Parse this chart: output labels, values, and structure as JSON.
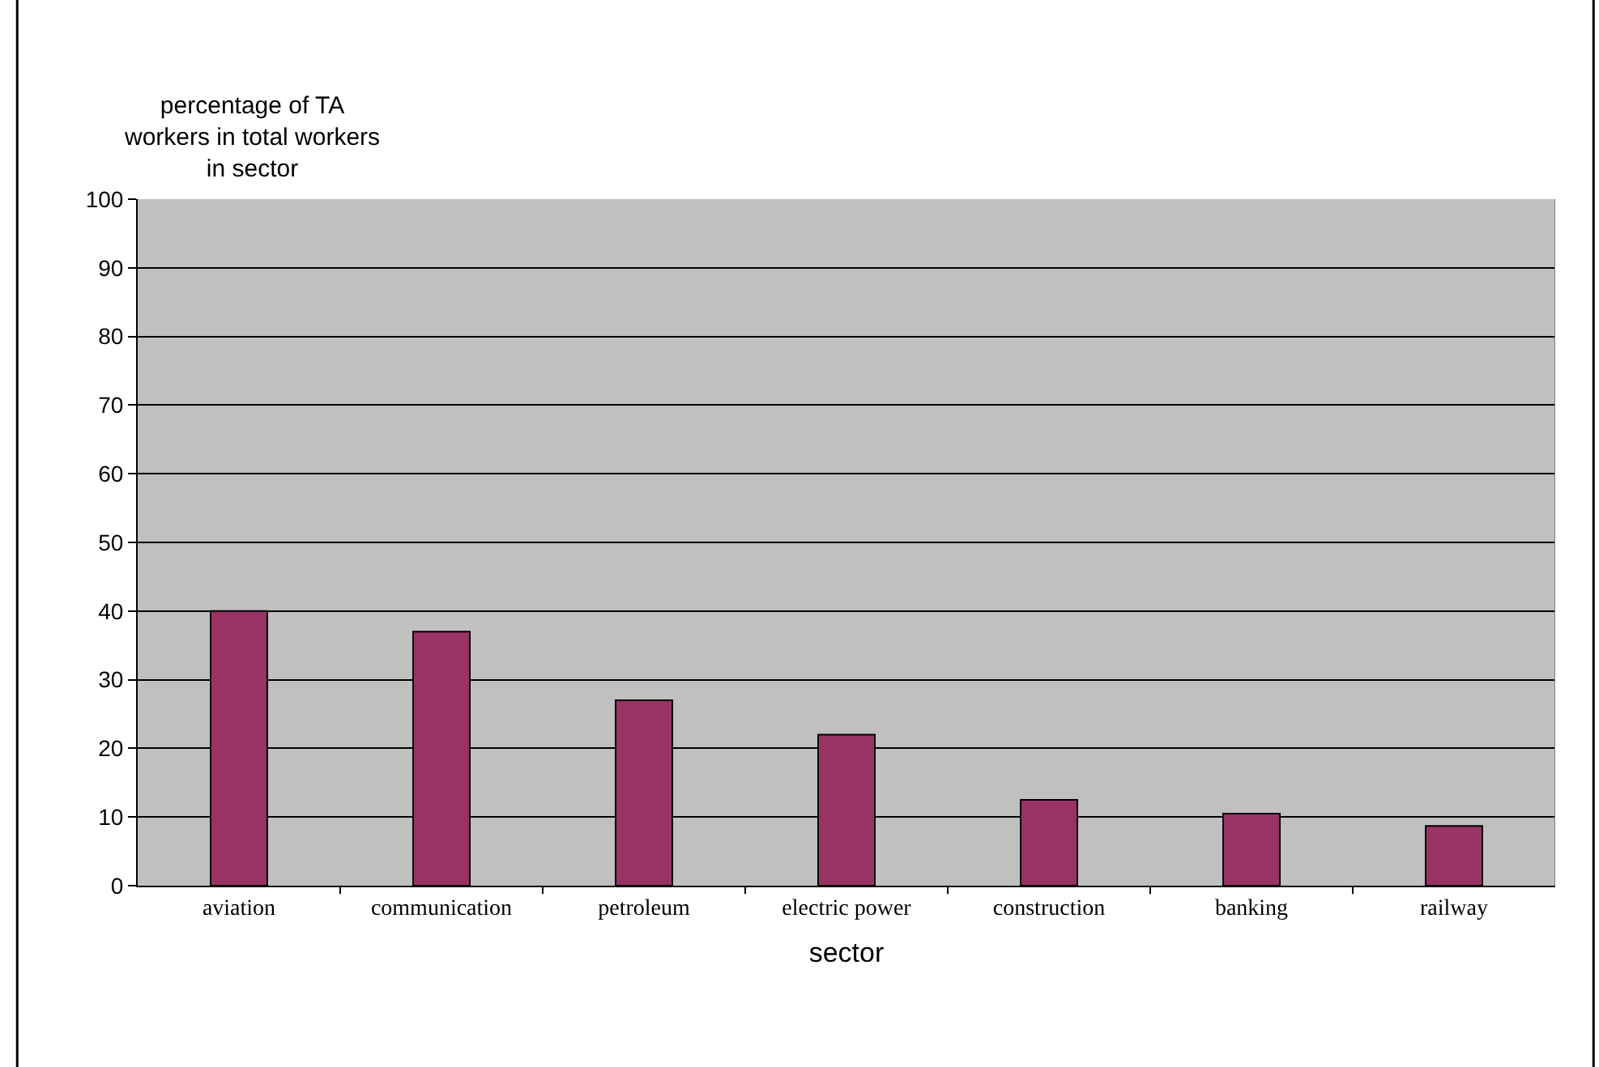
{
  "chart_data": {
    "type": "bar",
    "ylabel": "percentage of TA\nworkers in total workers\nin sector",
    "xlabel": "sector",
    "categories": [
      "aviation",
      "communication",
      "petroleum",
      "electric power",
      "construction",
      "banking",
      "railway"
    ],
    "values": [
      40,
      37,
      27,
      22,
      12.5,
      10.5,
      8.7
    ],
    "color": "#993366",
    "ylim": [
      0,
      100
    ],
    "yticks": [
      0,
      10,
      20,
      30,
      40,
      50,
      60,
      70,
      80,
      90,
      100
    ],
    "grid": "y",
    "legend": false
  }
}
